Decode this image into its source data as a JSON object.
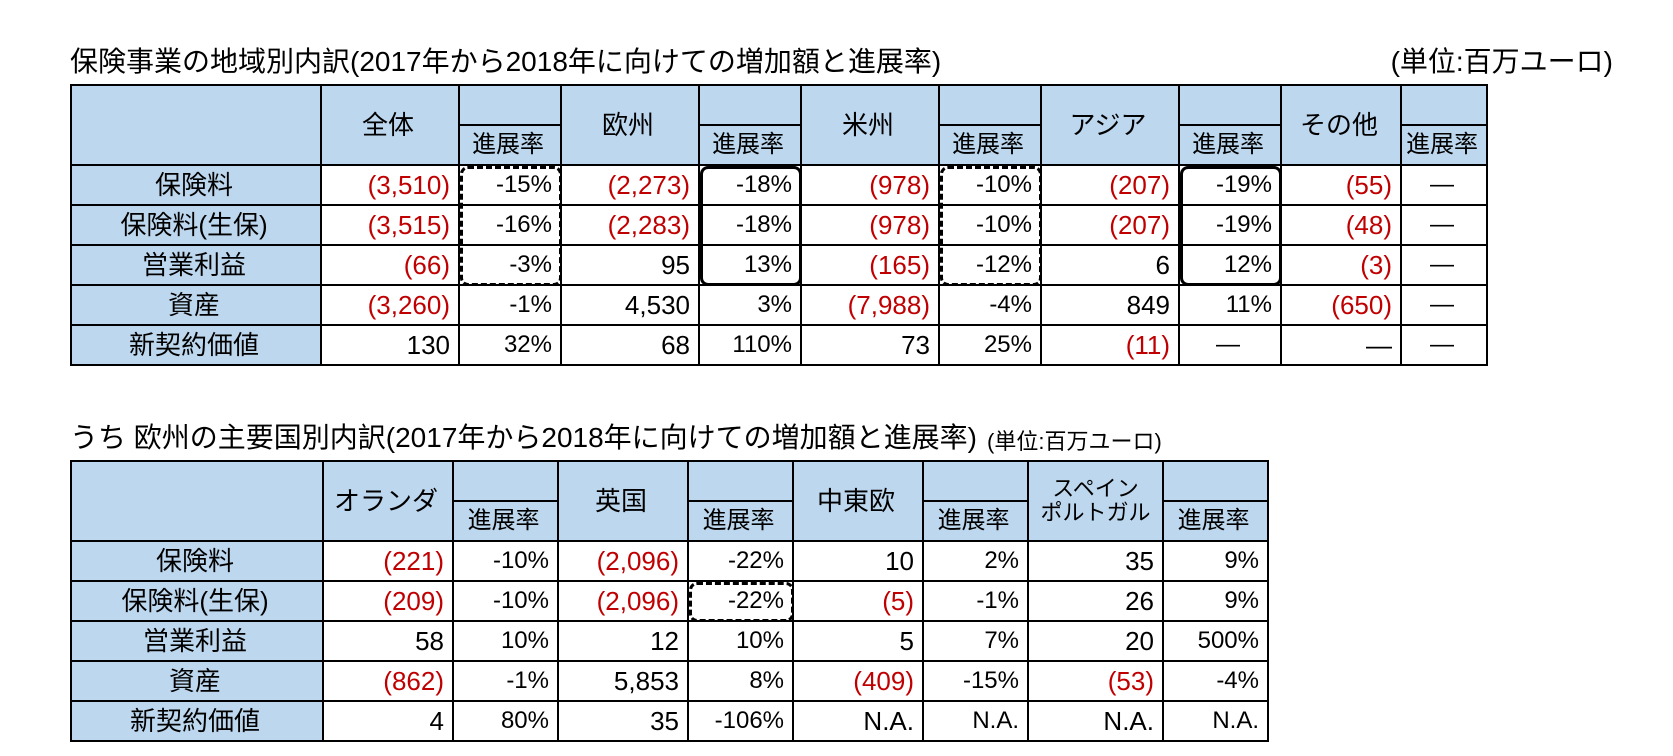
{
  "colors": {
    "header_bg": "#bdd7ee",
    "negative_text": "#c00000",
    "border": "#000000",
    "background": "#ffffff"
  },
  "fonts": {
    "title_size_pt": 28,
    "cell_size_pt": 26,
    "rate_size_pt": 24
  },
  "labels": {
    "progress_rate": "進展率",
    "dash": "―",
    "na": "N.A."
  },
  "table1": {
    "title": "保険事業の地域別内訳(2017年から2018年に向けての増加額と進展率)",
    "unit": "(単位:百万ユーロ)",
    "regions": [
      "全体",
      "欧州",
      "米州",
      "アジア",
      "その他"
    ],
    "row_labels": [
      "保険料",
      "保険料(生保)",
      "営業利益",
      "資産",
      "新契約価値"
    ],
    "rows": [
      [
        {
          "v": "(3,510)",
          "neg": true,
          "r": "-15%",
          "hl": "dash"
        },
        {
          "v": "(2,273)",
          "neg": true,
          "r": "-18%",
          "hl": "solid"
        },
        {
          "v": "(978)",
          "neg": true,
          "r": "-10%",
          "hl": "dash"
        },
        {
          "v": "(207)",
          "neg": true,
          "r": "-19%",
          "hl": "solid"
        },
        {
          "v": "(55)",
          "neg": true,
          "r": "―"
        }
      ],
      [
        {
          "v": "(3,515)",
          "neg": true,
          "r": "-16%",
          "hl": "dash"
        },
        {
          "v": "(2,283)",
          "neg": true,
          "r": "-18%",
          "hl": "solid"
        },
        {
          "v": "(978)",
          "neg": true,
          "r": "-10%",
          "hl": "dash"
        },
        {
          "v": "(207)",
          "neg": true,
          "r": "-19%",
          "hl": "solid"
        },
        {
          "v": "(48)",
          "neg": true,
          "r": "―"
        }
      ],
      [
        {
          "v": "(66)",
          "neg": true,
          "r": "-3%",
          "hl": "dash"
        },
        {
          "v": "95",
          "r": "13%",
          "hl": "solid"
        },
        {
          "v": "(165)",
          "neg": true,
          "r": "-12%",
          "hl": "dash"
        },
        {
          "v": "6",
          "r": "12%",
          "hl": "solid"
        },
        {
          "v": "(3)",
          "neg": true,
          "r": "―"
        }
      ],
      [
        {
          "v": "(3,260)",
          "neg": true,
          "r": "-1%"
        },
        {
          "v": "4,530",
          "r": "3%"
        },
        {
          "v": "(7,988)",
          "neg": true,
          "r": "-4%"
        },
        {
          "v": "849",
          "r": "11%"
        },
        {
          "v": "(650)",
          "neg": true,
          "r": "―"
        }
      ],
      [
        {
          "v": "130",
          "r": "32%"
        },
        {
          "v": "68",
          "r": "110%"
        },
        {
          "v": "73",
          "r": "25%"
        },
        {
          "v": "(11)",
          "neg": true,
          "r": "―"
        },
        {
          "v": "―",
          "r": "―"
        }
      ]
    ],
    "highlight_boxes": [
      {
        "style": "dash",
        "col": "全体",
        "rows": [
          0,
          2
        ]
      },
      {
        "style": "solid",
        "col": "欧州",
        "rows": [
          0,
          2
        ]
      },
      {
        "style": "dash",
        "col": "米州",
        "rows": [
          0,
          2
        ]
      },
      {
        "style": "solid",
        "col": "アジア",
        "rows": [
          0,
          2
        ]
      }
    ]
  },
  "table2": {
    "title": "うち 欧州の主要国別内訳(2017年から2018年に向けての増加額と進展率)",
    "unit": "(単位:百万ユーロ)",
    "countries": [
      {
        "line1": "オランダ",
        "line2": ""
      },
      {
        "line1": "英国",
        "line2": ""
      },
      {
        "line1": "中東欧",
        "line2": ""
      },
      {
        "line1": "スペイン",
        "line2": "ポルトガル"
      }
    ],
    "row_labels": [
      "保険料",
      "保険料(生保)",
      "営業利益",
      "資産",
      "新契約価値"
    ],
    "rows": [
      [
        {
          "v": "(221)",
          "neg": true,
          "r": "-10%"
        },
        {
          "v": "(2,096)",
          "neg": true,
          "r": "-22%"
        },
        {
          "v": "10",
          "r": "2%"
        },
        {
          "v": "35",
          "r": "9%"
        }
      ],
      [
        {
          "v": "(209)",
          "neg": true,
          "r": "-10%"
        },
        {
          "v": "(2,096)",
          "neg": true,
          "r": "-22%",
          "hl": "dash"
        },
        {
          "v": "(5)",
          "neg": true,
          "r": "-1%"
        },
        {
          "v": "26",
          "r": "9%"
        }
      ],
      [
        {
          "v": "58",
          "r": "10%"
        },
        {
          "v": "12",
          "r": "10%"
        },
        {
          "v": "5",
          "r": "7%"
        },
        {
          "v": "20",
          "r": "500%"
        }
      ],
      [
        {
          "v": "(862)",
          "neg": true,
          "r": "-1%"
        },
        {
          "v": "5,853",
          "r": "8%"
        },
        {
          "v": "(409)",
          "neg": true,
          "r": "-15%"
        },
        {
          "v": "(53)",
          "neg": true,
          "r": "-4%"
        }
      ],
      [
        {
          "v": "4",
          "r": "80%"
        },
        {
          "v": "35",
          "r": "-106%"
        },
        {
          "v": "N.A.",
          "r": "N.A."
        },
        {
          "v": "N.A.",
          "r": "N.A."
        }
      ]
    ],
    "highlight_boxes": [
      {
        "style": "dash",
        "col": "英国",
        "rows": [
          1,
          1
        ]
      }
    ]
  }
}
